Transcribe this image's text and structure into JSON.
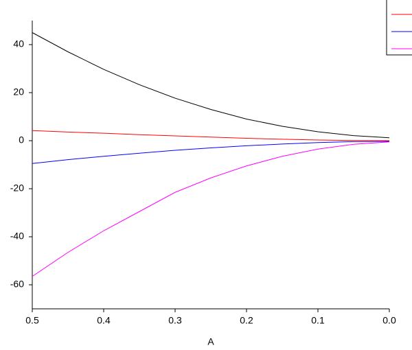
{
  "chart_data": {
    "type": "line",
    "x_label": "A",
    "x": [
      0.5,
      0.45,
      0.4,
      0.35,
      0.3,
      0.25,
      0.2,
      0.15,
      0.1,
      0.05,
      0.0
    ],
    "series": [
      {
        "color": "#000000",
        "values": [
          45,
          37,
          29.7,
          23.3,
          17.7,
          13,
          9,
          6,
          3.7,
          2.1,
          1.2
        ]
      },
      {
        "color": "#ff0000",
        "values": [
          4.2,
          3.6,
          3.1,
          2.5,
          2.0,
          1.5,
          1.0,
          0.6,
          0.3,
          0.1,
          0
        ]
      },
      {
        "color": "#0000ff",
        "values": [
          -9.5,
          -7.9,
          -6.5,
          -5.2,
          -4.0,
          -3.0,
          -2.1,
          -1.4,
          -0.8,
          -0.4,
          -0.3
        ]
      },
      {
        "color": "#ff00ff",
        "values": [
          -56.5,
          -46.5,
          -37.5,
          -29.5,
          -21.5,
          -15.5,
          -10.5,
          -6.5,
          -3.5,
          -1.5,
          -0.5
        ]
      }
    ],
    "xlim": [
      0.5,
      0.0
    ],
    "xticks": [
      0.5,
      0.4,
      0.3,
      0.2,
      0.1,
      {
        "value": 0,
        "label": "0.0"
      }
    ],
    "ylim": [
      -70,
      50
    ],
    "yticks": [
      40,
      20,
      0,
      -20,
      -40,
      -60
    ],
    "legend": "top-right"
  }
}
